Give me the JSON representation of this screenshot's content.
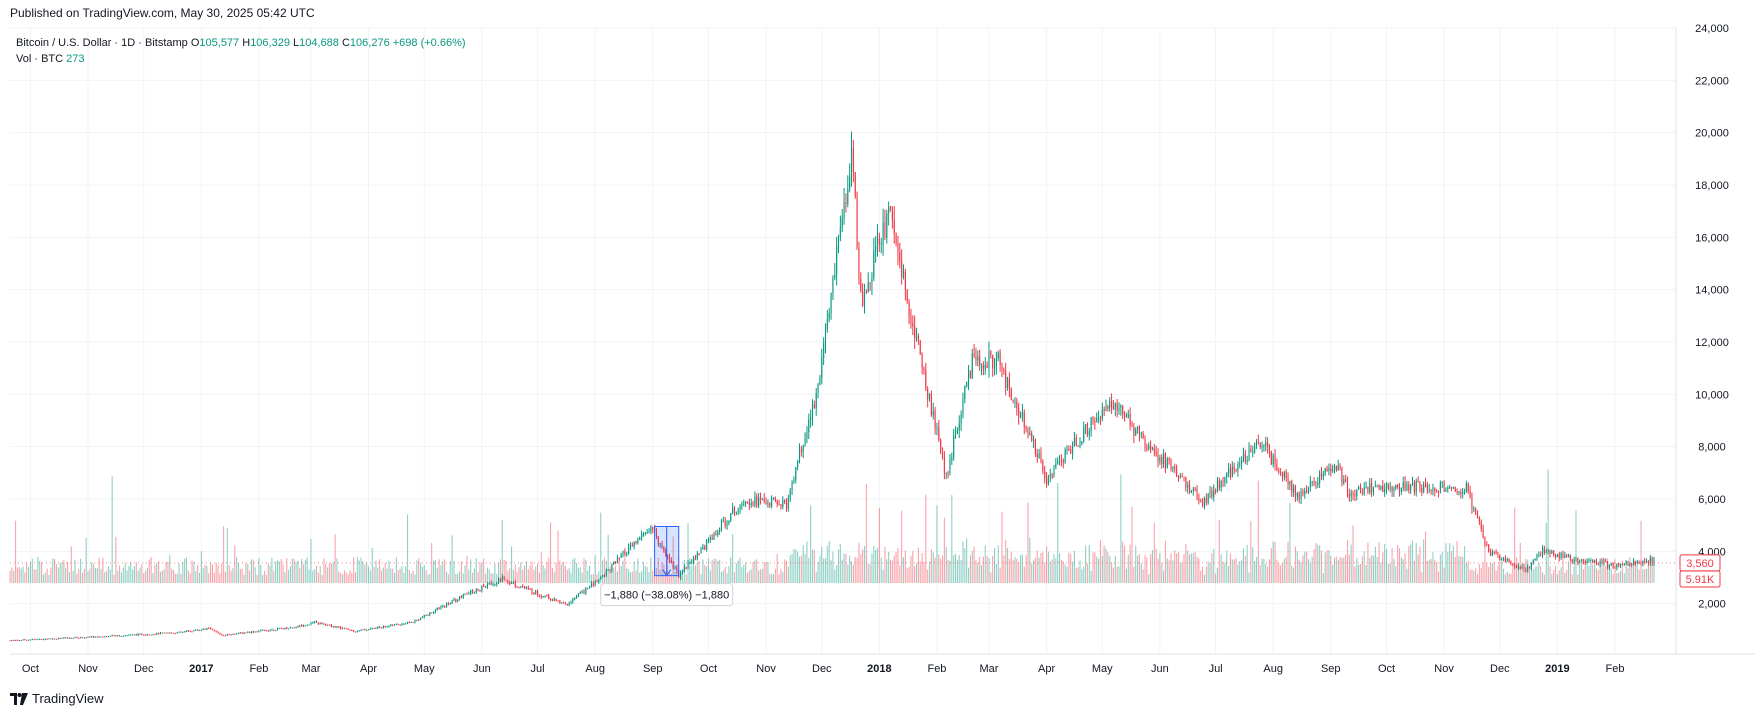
{
  "header": {
    "published": "Published on TradingView.com, May 30, 2025 05:42 UTC"
  },
  "legend": {
    "symbol": "Bitcoin / U.S. Dollar · 1D · Bitstamp",
    "o_label": "O",
    "o_value": "105,577",
    "h_label": "H",
    "h_value": "106,329",
    "l_label": "L",
    "l_value": "104,688",
    "c_label": "C",
    "c_value": "106,276",
    "change": "+698 (+0.66%)",
    "vol_label": "Vol · BTC",
    "vol_value": "273"
  },
  "colors": {
    "up": "#089981",
    "down": "#f23645",
    "grid": "#f0f3fa",
    "text": "#131722",
    "measure": "#2962ff"
  },
  "chart_data": {
    "type": "candlestick",
    "title": "Bitcoin / U.S. Dollar · 1D · Bitstamp",
    "ylim": [
      0,
      24000
    ],
    "y_ticks": [
      "24,000",
      "22,000",
      "20,000",
      "18,000",
      "16,000",
      "14,000",
      "12,000",
      "10,000",
      "8,000",
      "6,000",
      "4,000",
      "2,000"
    ],
    "x_ticks": [
      "Oct",
      "Nov",
      "Dec",
      "2017",
      "Feb",
      "Mar",
      "Apr",
      "May",
      "Jun",
      "Jul",
      "Aug",
      "Sep",
      "Oct",
      "Nov",
      "Dec",
      "2018",
      "Feb",
      "Mar",
      "Apr",
      "May",
      "Jun",
      "Jul",
      "Aug",
      "Sep",
      "Oct",
      "Nov",
      "Dec",
      "2019",
      "Feb"
    ],
    "x_start": "2016-09-20",
    "x_end": "2019-02-22",
    "price_anchors": [
      [
        "2016-09-20",
        600
      ],
      [
        "2016-11-01",
        720
      ],
      [
        "2016-12-20",
        900
      ],
      [
        "2017-01-05",
        1050
      ],
      [
        "2017-01-12",
        800
      ],
      [
        "2017-02-20",
        1100
      ],
      [
        "2017-03-03",
        1280
      ],
      [
        "2017-03-25",
        950
      ],
      [
        "2017-04-25",
        1300
      ],
      [
        "2017-05-25",
        2400
      ],
      [
        "2017-06-12",
        2950
      ],
      [
        "2017-07-16",
        1950
      ],
      [
        "2017-08-01",
        2800
      ],
      [
        "2017-08-31",
        4900
      ],
      [
        "2017-09-15",
        3100
      ],
      [
        "2017-09-30",
        4300
      ],
      [
        "2017-10-20",
        6000
      ],
      [
        "2017-11-12",
        5800
      ],
      [
        "2017-11-28",
        10000
      ],
      [
        "2017-12-17",
        19300
      ],
      [
        "2017-12-22",
        13500
      ],
      [
        "2018-01-06",
        17000
      ],
      [
        "2018-02-06",
        6900
      ],
      [
        "2018-02-20",
        11300
      ],
      [
        "2018-03-05",
        11400
      ],
      [
        "2018-04-01",
        6800
      ],
      [
        "2018-05-05",
        9800
      ],
      [
        "2018-05-20",
        8500
      ],
      [
        "2018-06-24",
        5900
      ],
      [
        "2018-07-25",
        8200
      ],
      [
        "2018-08-14",
        6100
      ],
      [
        "2018-09-04",
        7300
      ],
      [
        "2018-09-10",
        6300
      ],
      [
        "2018-10-10",
        6500
      ],
      [
        "2018-11-13",
        6400
      ],
      [
        "2018-11-25",
        4000
      ],
      [
        "2018-12-15",
        3250
      ],
      [
        "2018-12-24",
        4000
      ],
      [
        "2019-01-10",
        3700
      ],
      [
        "2019-01-31",
        3450
      ],
      [
        "2019-02-22",
        3650
      ]
    ],
    "current_price_label": "3,560",
    "volume_label": "5.91K",
    "measure": {
      "from": "2017-09-02",
      "to": "2017-09-15",
      "high": 4950,
      "low": 3070,
      "label": "−1,880 (−38.08%) −1,880"
    }
  },
  "footer": {
    "brand": "TradingView"
  }
}
